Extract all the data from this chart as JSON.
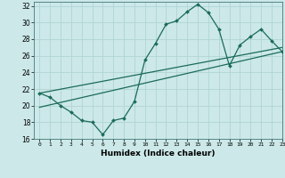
{
  "xlabel": "Humidex (Indice chaleur)",
  "bg_color": "#cce8e8",
  "grid_color": "#b0d4d4",
  "line_color": "#1a6b5a",
  "xmin": -0.5,
  "xmax": 23,
  "ymin": 16,
  "ymax": 32.5,
  "yticks": [
    16,
    18,
    20,
    22,
    24,
    26,
    28,
    30,
    32
  ],
  "xticks": [
    0,
    1,
    2,
    3,
    4,
    5,
    6,
    7,
    8,
    9,
    10,
    11,
    12,
    13,
    14,
    15,
    16,
    17,
    18,
    19,
    20,
    21,
    22,
    23
  ],
  "main_line_x": [
    0,
    1,
    2,
    3,
    4,
    5,
    6,
    7,
    8,
    9,
    10,
    11,
    12,
    13,
    14,
    15,
    16,
    17,
    18,
    19,
    20,
    21,
    22,
    23
  ],
  "main_line_y": [
    21.5,
    21.0,
    20.0,
    19.2,
    18.2,
    18.0,
    16.5,
    18.2,
    18.5,
    20.5,
    25.5,
    27.5,
    29.8,
    30.2,
    31.3,
    32.2,
    31.2,
    29.2,
    24.8,
    27.3,
    28.3,
    29.2,
    27.8,
    26.5
  ],
  "lower_line_x": [
    0,
    23
  ],
  "lower_line_y": [
    19.8,
    26.5
  ],
  "upper_line_x": [
    0,
    23
  ],
  "upper_line_y": [
    21.5,
    27.0
  ]
}
